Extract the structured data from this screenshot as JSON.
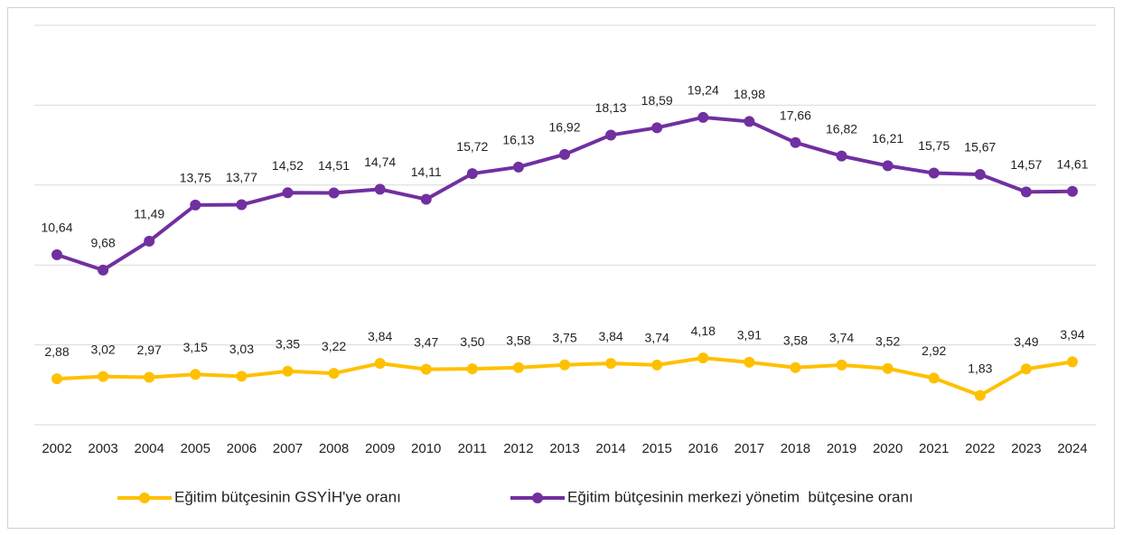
{
  "chart_data": {
    "type": "line",
    "categories": [
      "2002",
      "2003",
      "2004",
      "2005",
      "2006",
      "2007",
      "2008",
      "2009",
      "2010",
      "2011",
      "2012",
      "2013",
      "2014",
      "2015",
      "2016",
      "2017",
      "2018",
      "2019",
      "2020",
      "2021",
      "2022",
      "2023",
      "2024"
    ],
    "series": [
      {
        "name": "Eğitim bütçesinin GSYİH'ye oranı",
        "color": "#FFC000",
        "values": [
          2.88,
          3.02,
          2.97,
          3.15,
          3.03,
          3.35,
          3.22,
          3.84,
          3.47,
          3.5,
          3.58,
          3.75,
          3.84,
          3.74,
          4.18,
          3.91,
          3.58,
          3.74,
          3.52,
          2.92,
          1.83,
          3.49,
          3.94
        ],
        "value_labels": [
          "2,88",
          "3,02",
          "2,97",
          "3,15",
          "3,03",
          "3,35",
          "3,22",
          "3,84",
          "3,47",
          "3,50",
          "3,58",
          "3,75",
          "3,84",
          "3,74",
          "4,18",
          "3,91",
          "3,58",
          "3,74",
          "3,52",
          "2,92",
          "1,83",
          "3,49",
          "3,94"
        ]
      },
      {
        "name": "Eğitim bütçesinin merkezi yönetim  bütçesine oranı",
        "color": "#7030A0",
        "values": [
          10.64,
          9.68,
          11.49,
          13.75,
          13.77,
          14.52,
          14.51,
          14.74,
          14.11,
          15.72,
          16.13,
          16.92,
          18.13,
          18.59,
          19.24,
          18.98,
          17.66,
          16.82,
          16.21,
          15.75,
          15.67,
          14.57,
          14.61
        ],
        "value_labels": [
          "10,64",
          "9,68",
          "11,49",
          "13,75",
          "13,77",
          "14,52",
          "14,51",
          "14,74",
          "14,11",
          "15,72",
          "16,13",
          "16,92",
          "18,13",
          "18,59",
          "19,24",
          "18,98",
          "17,66",
          "16,82",
          "16,21",
          "15,75",
          "15,67",
          "14,57",
          "14,61"
        ]
      }
    ],
    "ylim": [
      0,
      25
    ],
    "yticks": [
      0,
      5,
      10,
      15,
      20,
      25
    ],
    "grid": true,
    "legend": "bottom"
  }
}
